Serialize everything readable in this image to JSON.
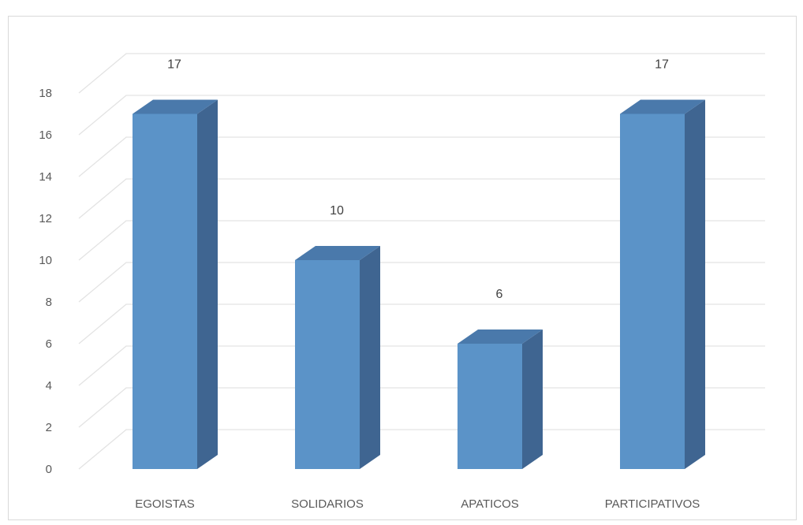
{
  "chart_data": {
    "type": "bar",
    "style": "3d-column",
    "title": "",
    "xlabel": "",
    "ylabel": "",
    "categories": [
      "EGOISTAS",
      "SOLIDARIOS",
      "APATICOS",
      "PARTICIPATIVOS"
    ],
    "values": [
      17,
      10,
      6,
      17
    ],
    "data_labels": [
      "17",
      "10",
      "6",
      "17"
    ],
    "ylim": [
      0,
      18
    ],
    "yticks": [
      0,
      2,
      4,
      6,
      8,
      10,
      12,
      14,
      16,
      18
    ],
    "ytick_labels": [
      "0",
      "2",
      "4",
      "6",
      "8",
      "10",
      "12",
      "14",
      "16",
      "18"
    ],
    "grid": true,
    "legend": "none",
    "colors": {
      "bar_front": "#5b93c8",
      "bar_side": "#3f6591",
      "bar_top": "#4a79ab",
      "grid": "#e3e3e3",
      "text": "#595959"
    }
  }
}
